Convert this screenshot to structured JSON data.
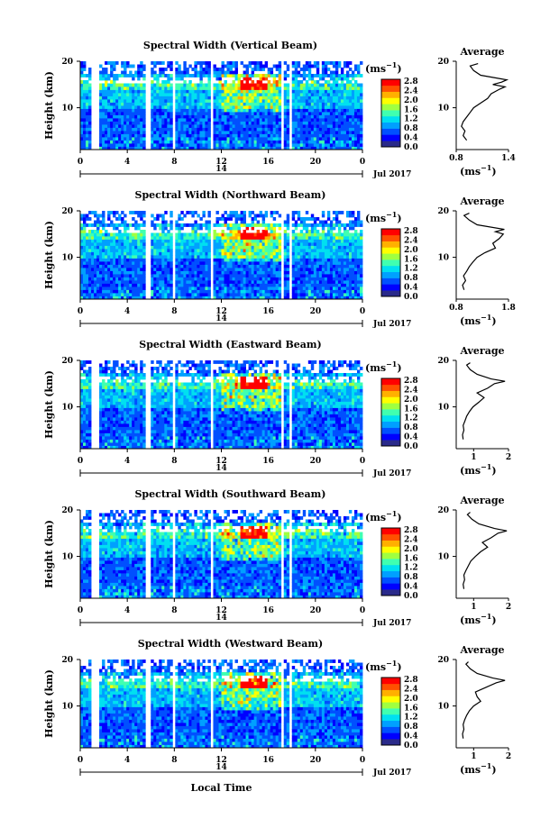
{
  "figure": {
    "xlabel": "Local Time",
    "date_label": "Jul 2017",
    "x_ticks": [
      "0",
      "4",
      "8",
      "12",
      "16",
      "20",
      "0"
    ],
    "day_label": "14",
    "y_ticks": [
      "20",
      "10"
    ],
    "ylabel": "Height (km)",
    "cbar_unit": "(ms",
    "cbar_unit_exp": "−1",
    "cbar_unit_close": ")",
    "cbar_ticks": [
      "2.8",
      "2.4",
      "2.0",
      "1.6",
      "1.2",
      "0.8",
      "0.4",
      "0.0"
    ],
    "avg_title": "Average",
    "avg_xlabel": "(ms",
    "avg_xlabel_exp": "−1",
    "avg_xlabel_close": ")"
  },
  "chart_data": [
    {
      "type": "heatmap",
      "title": "Spectral Width (Vertical Beam)",
      "xlabel": "Local Time",
      "ylabel": "Height (km)",
      "xlim": [
        0,
        24
      ],
      "ylim": [
        1,
        20
      ],
      "colorbar": {
        "label": "(ms-1)",
        "range": [
          0.0,
          2.8
        ],
        "ticks": [
          0.0,
          0.4,
          0.8,
          1.2,
          1.6,
          2.0,
          2.4,
          2.8
        ]
      },
      "data_gaps_hours": [
        [
          0.9,
          1.6
        ],
        [
          5.6,
          5.9
        ],
        [
          7.8,
          8.1
        ],
        [
          11.0,
          11.4
        ],
        [
          17.0,
          17.3
        ],
        [
          17.7,
          18.0
        ]
      ],
      "average_profile": {
        "xlim": [
          0.8,
          1.4
        ],
        "x_ticks": [
          "0.8",
          "1.4"
        ],
        "height_km": [
          3,
          4,
          5,
          6,
          7,
          8,
          9,
          10,
          11,
          12,
          13,
          14,
          14.5,
          15,
          15.5,
          16,
          17,
          18,
          19,
          19.5
        ],
        "value": [
          0.92,
          0.88,
          0.9,
          0.86,
          0.88,
          0.92,
          0.96,
          1.0,
          1.08,
          1.16,
          1.2,
          1.3,
          1.36,
          1.22,
          1.32,
          1.38,
          1.08,
          1.0,
          0.96,
          1.05
        ]
      }
    },
    {
      "type": "heatmap",
      "title": "Spectral Width (Northward Beam)",
      "xlabel": "Local Time",
      "ylabel": "Height (km)",
      "xlim": [
        0,
        24
      ],
      "ylim": [
        1,
        20
      ],
      "colorbar": {
        "label": "(ms-1)",
        "range": [
          0.0,
          2.8
        ],
        "ticks": [
          0.0,
          0.4,
          0.8,
          1.2,
          1.6,
          2.0,
          2.4,
          2.8
        ]
      },
      "data_gaps_hours": [
        [
          5.6,
          5.9
        ],
        [
          7.8,
          8.1
        ],
        [
          11.0,
          11.4
        ],
        [
          17.0,
          17.3
        ],
        [
          17.7,
          18.0
        ]
      ],
      "average_profile": {
        "xlim": [
          0.8,
          1.8
        ],
        "x_ticks": [
          "0.8",
          "1.8"
        ],
        "height_km": [
          3,
          4,
          5,
          6,
          7,
          8,
          9,
          10,
          11,
          12,
          13,
          14,
          15,
          15.5,
          16,
          17,
          18,
          19,
          19.5
        ],
        "value": [
          0.95,
          0.92,
          0.98,
          0.94,
          1.0,
          1.05,
          1.12,
          1.2,
          1.35,
          1.55,
          1.5,
          1.62,
          1.7,
          1.55,
          1.72,
          1.2,
          1.05,
          0.95,
          1.05
        ]
      }
    },
    {
      "type": "heatmap",
      "title": "Spectral Width (Eastward Beam)",
      "xlabel": "Local Time",
      "ylabel": "Height (km)",
      "xlim": [
        0,
        24
      ],
      "ylim": [
        1,
        20
      ],
      "colorbar": {
        "label": "(ms-1)",
        "range": [
          0.0,
          2.8
        ],
        "ticks": [
          0.0,
          0.4,
          0.8,
          1.2,
          1.6,
          2.0,
          2.4,
          2.8
        ]
      },
      "data_gaps_hours": [
        [
          0.9,
          1.6
        ],
        [
          5.6,
          5.9
        ],
        [
          7.8,
          8.1
        ],
        [
          11.0,
          11.4
        ],
        [
          17.0,
          17.3
        ],
        [
          17.7,
          18.0
        ]
      ],
      "average_profile": {
        "xlim": [
          0.5,
          2.0
        ],
        "x_ticks": [
          "1",
          "2"
        ],
        "height_km": [
          3,
          4,
          5,
          6,
          7,
          8,
          9,
          10,
          11,
          12,
          13,
          14,
          15,
          15.5,
          16,
          17,
          18,
          19,
          19.5
        ],
        "value": [
          0.7,
          0.68,
          0.72,
          0.7,
          0.75,
          0.8,
          0.88,
          0.98,
          1.15,
          1.3,
          1.1,
          1.4,
          1.6,
          1.9,
          1.5,
          1.1,
          0.9,
          0.8,
          0.9
        ]
      }
    },
    {
      "type": "heatmap",
      "title": "Spectral Width (Southward Beam)",
      "xlabel": "Local Time",
      "ylabel": "Height (km)",
      "xlim": [
        0,
        24
      ],
      "ylim": [
        1,
        20
      ],
      "colorbar": {
        "label": "(ms-1)",
        "range": [
          0.0,
          2.8
        ],
        "ticks": [
          0.0,
          0.4,
          0.8,
          1.2,
          1.6,
          2.0,
          2.4,
          2.8
        ]
      },
      "data_gaps_hours": [
        [
          0.9,
          1.6
        ],
        [
          5.6,
          5.9
        ],
        [
          7.8,
          8.1
        ],
        [
          11.0,
          11.4
        ],
        [
          17.0,
          17.3
        ],
        [
          17.7,
          18.0
        ]
      ],
      "average_profile": {
        "xlim": [
          0.5,
          2.0
        ],
        "x_ticks": [
          "1",
          "2"
        ],
        "height_km": [
          3,
          4,
          5,
          6,
          7,
          8,
          9,
          10,
          11,
          12,
          13,
          14,
          15,
          15.5,
          16,
          17,
          18,
          19,
          19.5
        ],
        "value": [
          0.72,
          0.7,
          0.74,
          0.72,
          0.78,
          0.85,
          0.92,
          1.05,
          1.2,
          1.4,
          1.25,
          1.5,
          1.7,
          1.95,
          1.6,
          1.15,
          0.95,
          0.82,
          0.9
        ]
      }
    },
    {
      "type": "heatmap",
      "title": "Spectral Width (Westward Beam)",
      "xlabel": "Local Time",
      "ylabel": "Height (km)",
      "xlim": [
        0,
        24
      ],
      "ylim": [
        1,
        20
      ],
      "colorbar": {
        "label": "(ms-1)",
        "range": [
          0.0,
          2.8
        ],
        "ticks": [
          0.0,
          0.4,
          0.8,
          1.2,
          1.6,
          2.0,
          2.4,
          2.8
        ]
      },
      "data_gaps_hours": [
        [
          0.9,
          1.6
        ],
        [
          5.6,
          5.9
        ],
        [
          7.8,
          8.1
        ],
        [
          11.0,
          11.4
        ],
        [
          17.0,
          17.3
        ],
        [
          17.7,
          18.0
        ]
      ],
      "average_profile": {
        "xlim": [
          0.5,
          2.0
        ],
        "x_ticks": [
          "1",
          "2"
        ],
        "height_km": [
          3,
          4,
          5,
          6,
          7,
          8,
          9,
          10,
          11,
          12,
          13,
          14,
          15,
          15.5,
          16,
          17,
          18,
          19,
          19.5
        ],
        "value": [
          0.7,
          0.68,
          0.72,
          0.7,
          0.74,
          0.8,
          0.88,
          1.0,
          1.2,
          1.1,
          1.05,
          1.35,
          1.65,
          1.9,
          1.55,
          1.1,
          0.9,
          0.78,
          0.85
        ]
      }
    }
  ],
  "colors": {
    "colormap": [
      "#2a2a8a",
      "#0000ff",
      "#0050ff",
      "#00a0ff",
      "#00e0f0",
      "#40ffb0",
      "#a0ff40",
      "#ffff00",
      "#ffb000",
      "#ff5000",
      "#ff0000"
    ]
  }
}
